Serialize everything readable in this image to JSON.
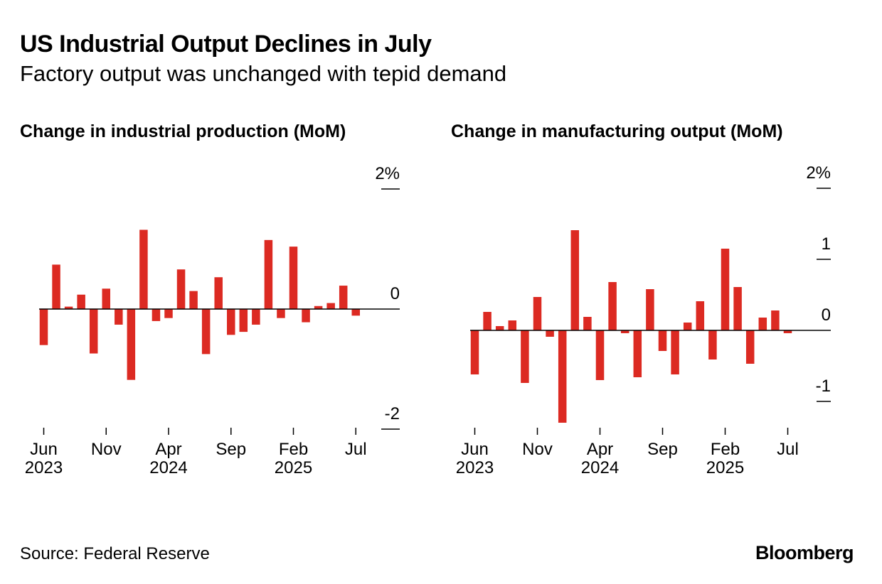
{
  "header": {
    "title": "US Industrial Output Declines in July",
    "subtitle": "Factory output was unchanged with tepid demand"
  },
  "footer": {
    "source": "Source: Federal Reserve",
    "logo": "Bloomberg"
  },
  "colors": {
    "bar": "#dc2a22",
    "axis": "#000000"
  },
  "chart_data": [
    {
      "type": "bar",
      "title": "Change in industrial production (MoM)",
      "ylabel": "",
      "xlabel": "",
      "ylim": [
        -2,
        2
      ],
      "y_tick_values": [
        2,
        0,
        -2
      ],
      "y_tick_labels": [
        "2%",
        "0",
        "-2"
      ],
      "x_ticks": [
        {
          "index": 0,
          "month": "Jun",
          "year": "2023"
        },
        {
          "index": 5,
          "month": "Nov",
          "year": ""
        },
        {
          "index": 10,
          "month": "Apr",
          "year": "2024"
        },
        {
          "index": 15,
          "month": "Sep",
          "year": ""
        },
        {
          "index": 20,
          "month": "Feb",
          "year": "2025"
        },
        {
          "index": 25,
          "month": "Jul",
          "year": ""
        }
      ],
      "categories": [
        "Jun 2023",
        "Jul 2023",
        "Aug 2023",
        "Sep 2023",
        "Oct 2023",
        "Nov 2023",
        "Dec 2023",
        "Jan 2024",
        "Feb 2024",
        "Mar 2024",
        "Apr 2024",
        "May 2024",
        "Jun 2024",
        "Jul 2024",
        "Aug 2024",
        "Sep 2024",
        "Oct 2024",
        "Nov 2024",
        "Dec 2024",
        "Jan 2025",
        "Feb 2025",
        "Mar 2025",
        "Apr 2025",
        "May 2025",
        "Jun 2025",
        "Jul 2025"
      ],
      "values": [
        -0.6,
        0.74,
        0.04,
        0.24,
        -0.74,
        0.34,
        -0.26,
        -1.18,
        1.32,
        -0.2,
        -0.15,
        0.66,
        0.3,
        -0.75,
        0.53,
        -0.43,
        -0.38,
        -0.26,
        1.15,
        -0.15,
        1.04,
        -0.22,
        0.05,
        0.1,
        0.39,
        -0.11
      ]
    },
    {
      "type": "bar",
      "title": "Change in manufacturing output (MoM)",
      "ylabel": "",
      "xlabel": "",
      "ylim": [
        -1.6,
        2
      ],
      "y_tick_values": [
        2,
        1,
        0,
        -1
      ],
      "y_tick_labels": [
        "2%",
        "1",
        "0",
        "-1"
      ],
      "x_ticks": [
        {
          "index": 0,
          "month": "Jun",
          "year": "2023"
        },
        {
          "index": 5,
          "month": "Nov",
          "year": ""
        },
        {
          "index": 10,
          "month": "Apr",
          "year": "2024"
        },
        {
          "index": 15,
          "month": "Sep",
          "year": ""
        },
        {
          "index": 20,
          "month": "Feb",
          "year": "2025"
        },
        {
          "index": 25,
          "month": "Jul",
          "year": ""
        }
      ],
      "categories": [
        "Jun 2023",
        "Jul 2023",
        "Aug 2023",
        "Sep 2023",
        "Oct 2023",
        "Nov 2023",
        "Dec 2023",
        "Jan 2024",
        "Feb 2024",
        "Mar 2024",
        "Apr 2024",
        "May 2024",
        "Jun 2024",
        "Jul 2024",
        "Aug 2024",
        "Sep 2024",
        "Oct 2024",
        "Nov 2024",
        "Dec 2024",
        "Jan 2025",
        "Feb 2025",
        "Mar 2025",
        "Apr 2025",
        "May 2025",
        "Jun 2025",
        "Jul 2025"
      ],
      "values": [
        -0.62,
        0.26,
        0.06,
        0.14,
        -0.74,
        0.47,
        -0.09,
        -1.3,
        1.41,
        0.19,
        -0.7,
        0.68,
        -0.04,
        -0.66,
        0.58,
        -0.29,
        -0.62,
        0.11,
        0.41,
        -0.41,
        1.15,
        0.61,
        -0.47,
        0.18,
        0.28,
        -0.04
      ]
    }
  ]
}
